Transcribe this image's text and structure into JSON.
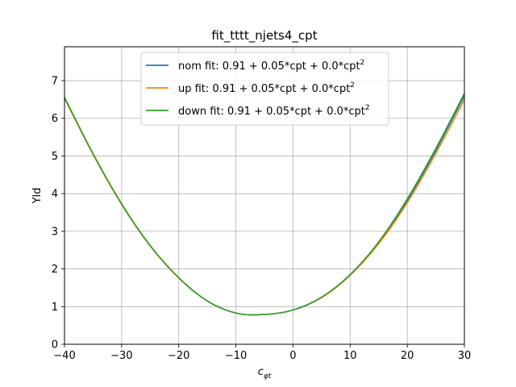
{
  "chart_data": {
    "type": "line",
    "title": "fit_tttt_njets4_cpt",
    "xlabel": "c",
    "xlabel_sub": "φt",
    "ylabel": "Yld",
    "xlim": [
      -40,
      30
    ],
    "ylim": [
      0,
      7.9
    ],
    "xticks": [
      -40,
      -30,
      -20,
      -10,
      0,
      10,
      20,
      30
    ],
    "yticks": [
      0,
      1,
      2,
      3,
      4,
      5,
      6,
      7
    ],
    "grid": true,
    "legend_position": "top-center",
    "series": [
      {
        "name": "nom fit: 0.91 + 0.05*cpt + 0.0*cpt",
        "name_sup": "2",
        "color": "#1f77b4",
        "x": [
          -40,
          -35,
          -30,
          -25,
          -20,
          -15,
          -10,
          -5,
          0,
          5,
          10,
          15,
          20,
          25,
          30
        ],
        "y": [
          6.55,
          5.05,
          3.72,
          2.62,
          1.76,
          1.15,
          0.83,
          0.79,
          0.91,
          1.24,
          1.84,
          2.7,
          3.82,
          5.15,
          6.6
        ]
      },
      {
        "name": "up fit: 0.91 + 0.05*cpt + 0.0*cpt",
        "name_sup": "2",
        "color": "#ff7f0e",
        "x": [
          -40,
          -35,
          -30,
          -25,
          -20,
          -15,
          -10,
          -5,
          0,
          5,
          10,
          15,
          20,
          25,
          30
        ],
        "y": [
          6.53,
          5.04,
          3.71,
          2.61,
          1.76,
          1.15,
          0.83,
          0.79,
          0.91,
          1.24,
          1.83,
          2.67,
          3.76,
          5.07,
          6.5
        ]
      },
      {
        "name": "down fit: 0.91 + 0.05*cpt + 0.0*cpt",
        "name_sup": "2",
        "color": "#2ca02c",
        "x": [
          -40,
          -35,
          -30,
          -25,
          -20,
          -15,
          -10,
          -5,
          0,
          5,
          10,
          15,
          20,
          25,
          30
        ],
        "y": [
          6.56,
          5.06,
          3.73,
          2.62,
          1.77,
          1.15,
          0.83,
          0.79,
          0.91,
          1.25,
          1.85,
          2.72,
          3.86,
          5.2,
          6.66
        ]
      }
    ]
  }
}
